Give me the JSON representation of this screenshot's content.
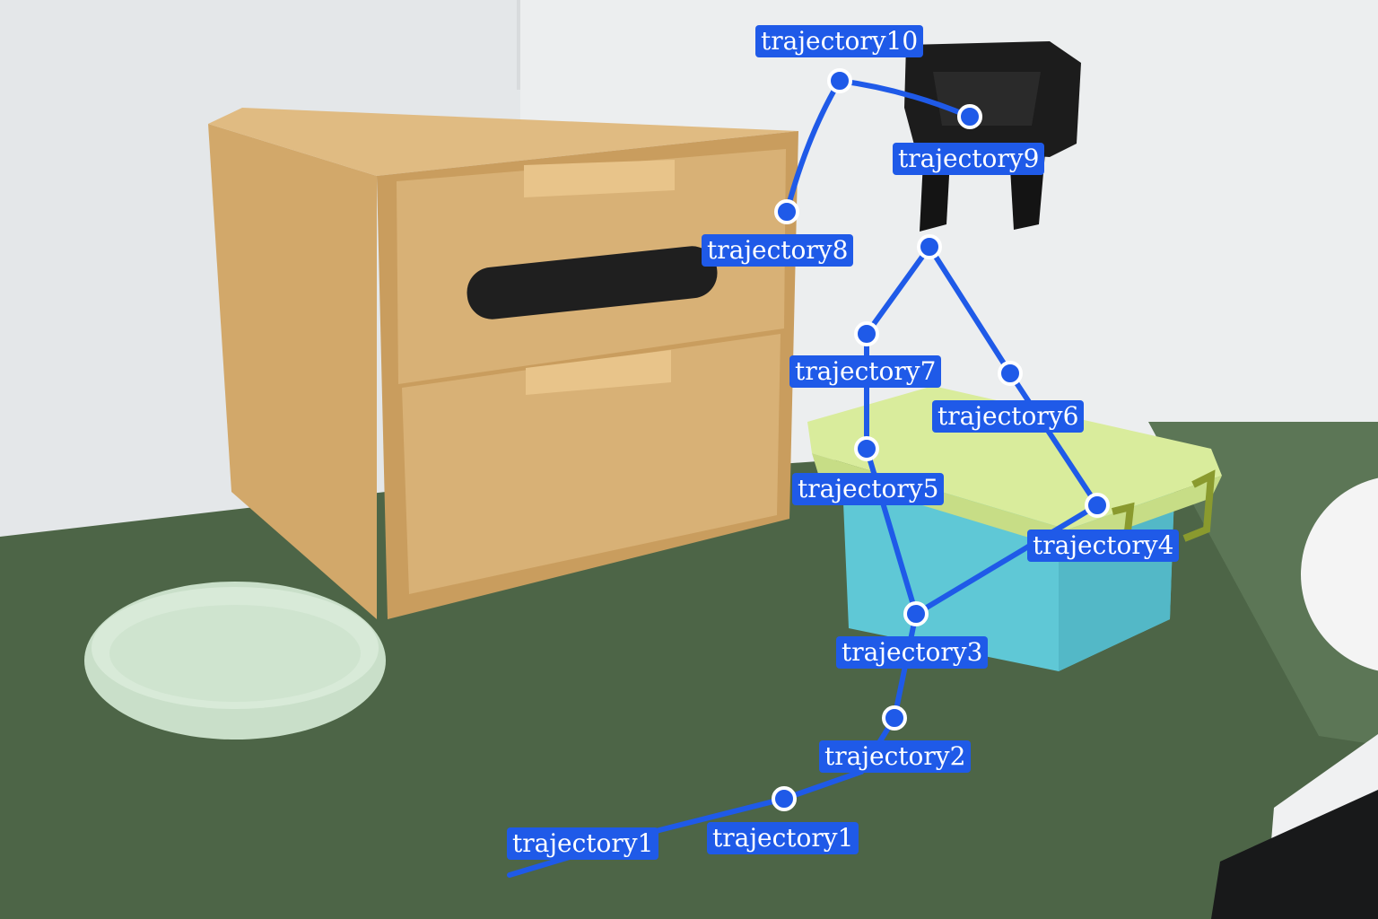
{
  "trajectory": {
    "line_color": "#1f5ae8",
    "label_bg": "#1f5ae8",
    "labels": [
      "trajectory10",
      "trajectory9",
      "trajectory8",
      "trajectory7",
      "trajectory6",
      "trajectory5",
      "trajectory4",
      "trajectory3",
      "trajectory2",
      "trajectory1",
      "trajectory1"
    ]
  }
}
